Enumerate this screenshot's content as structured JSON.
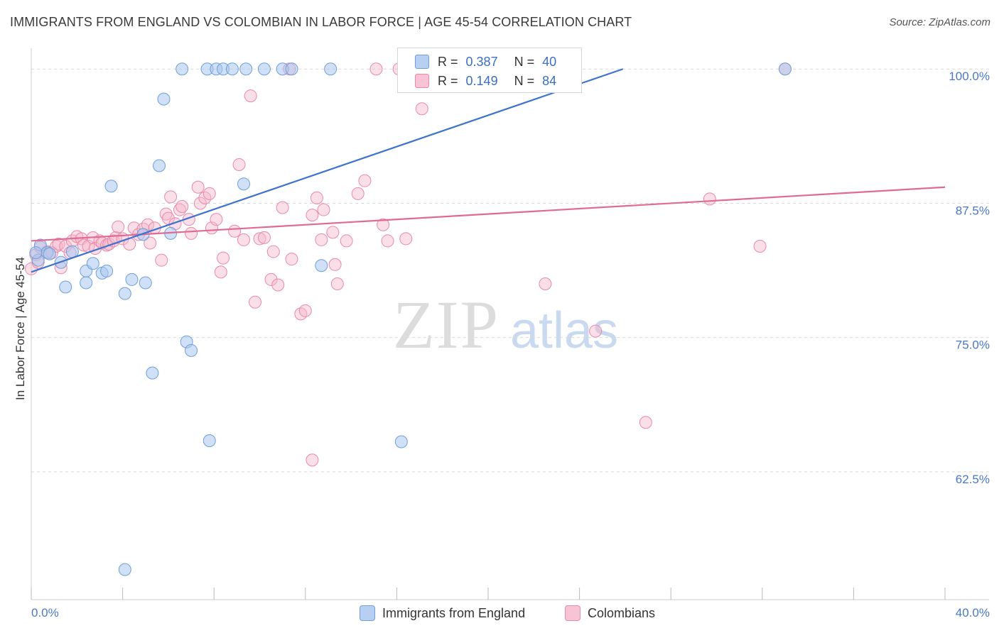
{
  "title": "IMMIGRANTS FROM ENGLAND VS COLOMBIAN IN LABOR FORCE | AGE 45-54 CORRELATION CHART",
  "source": "Source: ZipAtlas.com",
  "watermark": {
    "zip": "ZIP",
    "atlas": "atlas"
  },
  "legend": {
    "r_label": "R =",
    "n_label": "N =",
    "series1": {
      "r": "0.387",
      "n": "40"
    },
    "series2": {
      "r": "0.149",
      "n": "84"
    }
  },
  "colors": {
    "blue_fill": "#a9c6ee",
    "blue_stroke": "#6f9fd8",
    "blue_line": "#3f74cc",
    "pink_fill": "#f5b6cb",
    "pink_stroke": "#e88aa8",
    "pink_line": "#e06a94",
    "tick_text": "#4a78c8",
    "grid": "#d9d9d9"
  },
  "chart_data": {
    "type": "scatter",
    "title": "IMMIGRANTS FROM ENGLAND VS COLOMBIAN IN LABOR FORCE | AGE 45-54 CORRELATION CHART",
    "xlabel": "",
    "ylabel": "In Labor Force | Age 45-54",
    "xlim": [
      0,
      40
    ],
    "ylim": [
      50.6,
      101.8
    ],
    "x_tick_labels": [
      "0.0%",
      "40.0%"
    ],
    "y_ticks": [
      62.5,
      75.0,
      87.5,
      100.0
    ],
    "y_tick_labels": [
      "62.5%",
      "75.0%",
      "87.5%",
      "100.0%"
    ],
    "series": [
      {
        "name": "Immigrants from England",
        "r": 0.387,
        "n": 40,
        "trend": {
          "x0": 0,
          "y0": 81.1,
          "x1": 25.9,
          "y1": 100.0
        },
        "points": [
          [
            0.3,
            82.2
          ],
          [
            0.4,
            83.6
          ],
          [
            0.7,
            82.9
          ],
          [
            0.8,
            82.8
          ],
          [
            1.3,
            82.0
          ],
          [
            1.5,
            79.7
          ],
          [
            1.8,
            83.0
          ],
          [
            2.4,
            81.2
          ],
          [
            2.4,
            80.1
          ],
          [
            2.7,
            81.9
          ],
          [
            3.1,
            81.0
          ],
          [
            3.3,
            81.2
          ],
          [
            3.5,
            89.1
          ],
          [
            4.1,
            79.1
          ],
          [
            4.4,
            80.4
          ],
          [
            4.9,
            84.6
          ],
          [
            5.0,
            80.1
          ],
          [
            5.3,
            71.7
          ],
          [
            5.6,
            91.0
          ],
          [
            5.8,
            97.2
          ],
          [
            6.1,
            84.7
          ],
          [
            6.6,
            100.0
          ],
          [
            6.8,
            74.6
          ],
          [
            7.0,
            73.8
          ],
          [
            7.7,
            100.0
          ],
          [
            7.8,
            65.4
          ],
          [
            8.1,
            100.0
          ],
          [
            8.4,
            100.0
          ],
          [
            8.8,
            100.0
          ],
          [
            9.3,
            89.3
          ],
          [
            9.4,
            100.0
          ],
          [
            10.2,
            100.0
          ],
          [
            11.0,
            100.0
          ],
          [
            11.4,
            100.0
          ],
          [
            12.7,
            81.7
          ],
          [
            13.1,
            100.0
          ],
          [
            16.2,
            65.3
          ],
          [
            33.0,
            100.0
          ],
          [
            0.2,
            82.9
          ],
          [
            4.1,
            53.4
          ]
        ]
      },
      {
        "name": "Colombians",
        "r": 0.149,
        "n": 84,
        "trend": {
          "x0": 0,
          "y0": 84.0,
          "x1": 40,
          "y1": 89.0
        },
        "points": [
          [
            0.0,
            81.4
          ],
          [
            0.2,
            82.7
          ],
          [
            0.3,
            82.0
          ],
          [
            0.4,
            83.4
          ],
          [
            0.7,
            83.0
          ],
          [
            0.9,
            82.9
          ],
          [
            1.1,
            83.5
          ],
          [
            1.2,
            83.7
          ],
          [
            1.3,
            81.5
          ],
          [
            1.5,
            83.5
          ],
          [
            1.7,
            82.9
          ],
          [
            1.8,
            84.0
          ],
          [
            2.0,
            84.4
          ],
          [
            2.2,
            84.2
          ],
          [
            2.3,
            83.6
          ],
          [
            2.5,
            83.5
          ],
          [
            2.7,
            84.3
          ],
          [
            2.8,
            83.3
          ],
          [
            3.0,
            84.0
          ],
          [
            3.1,
            83.8
          ],
          [
            3.3,
            83.6
          ],
          [
            3.4,
            83.7
          ],
          [
            3.6,
            84.0
          ],
          [
            3.7,
            84.3
          ],
          [
            3.8,
            85.3
          ],
          [
            4.0,
            84.2
          ],
          [
            4.3,
            83.7
          ],
          [
            4.5,
            85.2
          ],
          [
            4.7,
            84.6
          ],
          [
            4.9,
            85.1
          ],
          [
            5.1,
            85.5
          ],
          [
            5.2,
            83.8
          ],
          [
            5.4,
            85.2
          ],
          [
            5.7,
            82.2
          ],
          [
            5.9,
            86.5
          ],
          [
            6.0,
            86.1
          ],
          [
            6.1,
            88.1
          ],
          [
            6.3,
            85.6
          ],
          [
            6.5,
            86.9
          ],
          [
            6.6,
            87.2
          ],
          [
            6.9,
            86.0
          ],
          [
            7.0,
            84.7
          ],
          [
            7.3,
            89.0
          ],
          [
            7.4,
            87.5
          ],
          [
            7.6,
            88.0
          ],
          [
            7.8,
            88.4
          ],
          [
            7.9,
            85.2
          ],
          [
            8.1,
            86.0
          ],
          [
            8.3,
            81.1
          ],
          [
            8.4,
            82.4
          ],
          [
            8.9,
            84.9
          ],
          [
            9.1,
            91.1
          ],
          [
            9.3,
            84.1
          ],
          [
            9.6,
            97.5
          ],
          [
            9.8,
            78.3
          ],
          [
            10.0,
            84.2
          ],
          [
            10.2,
            84.3
          ],
          [
            10.5,
            80.4
          ],
          [
            10.6,
            83.0
          ],
          [
            10.8,
            79.9
          ],
          [
            11.0,
            87.1
          ],
          [
            11.3,
            100.0
          ],
          [
            11.4,
            82.3
          ],
          [
            11.8,
            77.2
          ],
          [
            12.0,
            77.5
          ],
          [
            12.3,
            86.4
          ],
          [
            12.5,
            88.0
          ],
          [
            12.7,
            84.1
          ],
          [
            12.8,
            86.9
          ],
          [
            13.2,
            84.8
          ],
          [
            13.3,
            81.8
          ],
          [
            13.4,
            80.0
          ],
          [
            13.8,
            84.0
          ],
          [
            14.3,
            88.4
          ],
          [
            14.6,
            89.6
          ],
          [
            15.1,
            100.0
          ],
          [
            15.4,
            85.5
          ],
          [
            15.6,
            84.0
          ],
          [
            16.1,
            100.0
          ],
          [
            16.4,
            84.2
          ],
          [
            17.1,
            96.3
          ],
          [
            22.5,
            80.0
          ],
          [
            24.7,
            75.6
          ],
          [
            26.9,
            67.1
          ]
        ],
        "extra_points": [
          [
            12.3,
            63.6
          ],
          [
            29.7,
            87.9
          ],
          [
            31.9,
            83.5
          ],
          [
            33.0,
            100.0
          ],
          [
            22.4,
            100.0
          ]
        ]
      }
    ]
  },
  "bottom_legend": {
    "series1": "Immigrants from England",
    "series2": "Colombians"
  }
}
